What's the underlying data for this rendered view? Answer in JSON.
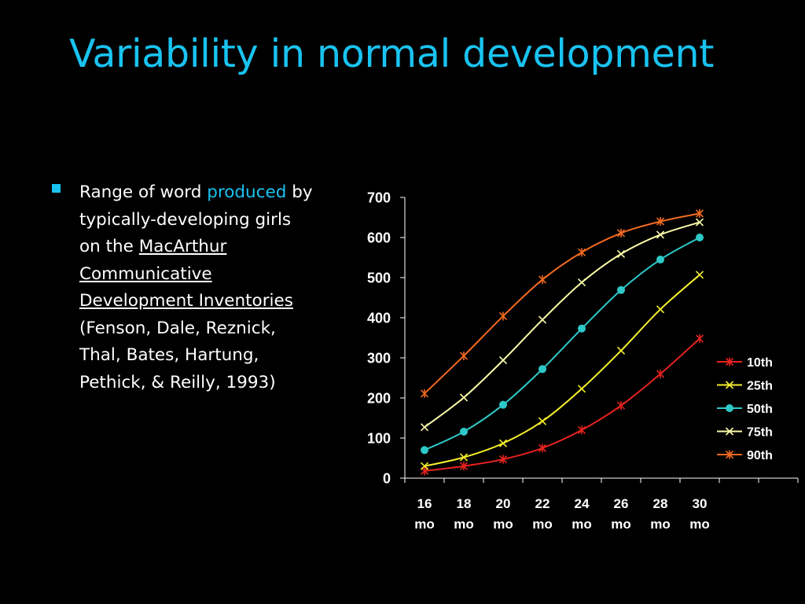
{
  "slide": {
    "title": "Variability in normal development",
    "bullet": {
      "t1": "Range of word ",
      "t2": "produced",
      "t3": " by typically-developing girls on the ",
      "t4": "MacArthur Communicative Development Inventories ",
      "t5": "(Fenson, Dale, Reznick, Thal, Bates, Hartung, Pethick, & Reilly, 1993)"
    }
  },
  "colors": {
    "accent": "#19c3f0",
    "background": "#000000",
    "text": "#ffffff"
  },
  "chart_data": {
    "type": "line",
    "categories": [
      "16 mo",
      "18 mo",
      "20 mo",
      "22 mo",
      "24 mo",
      "26 mo",
      "28 mo",
      "30 mo"
    ],
    "ylim": [
      0,
      700
    ],
    "yticks": [
      0,
      100,
      200,
      300,
      400,
      500,
      600,
      700
    ],
    "legend_position": "right",
    "grid": false,
    "series": [
      {
        "name": "10th",
        "color": "#e8231f",
        "marker": "star",
        "values": [
          18,
          30,
          47,
          75,
          120,
          181,
          260,
          348
        ]
      },
      {
        "name": "25th",
        "color": "#f6f02a",
        "marker": "x",
        "values": [
          30,
          52,
          87,
          142,
          223,
          318,
          421,
          507
        ]
      },
      {
        "name": "50th",
        "color": "#2ec8c8",
        "marker": "circle",
        "values": [
          70,
          116,
          183,
          272,
          373,
          469,
          545,
          600
        ]
      },
      {
        "name": "75th",
        "color": "#fbfba8",
        "marker": "x",
        "values": [
          127,
          201,
          294,
          395,
          488,
          559,
          607,
          638
        ]
      },
      {
        "name": "90th",
        "color": "#f26a1f",
        "marker": "star",
        "values": [
          211,
          305,
          404,
          495,
          563,
          611,
          640,
          660
        ]
      }
    ]
  }
}
